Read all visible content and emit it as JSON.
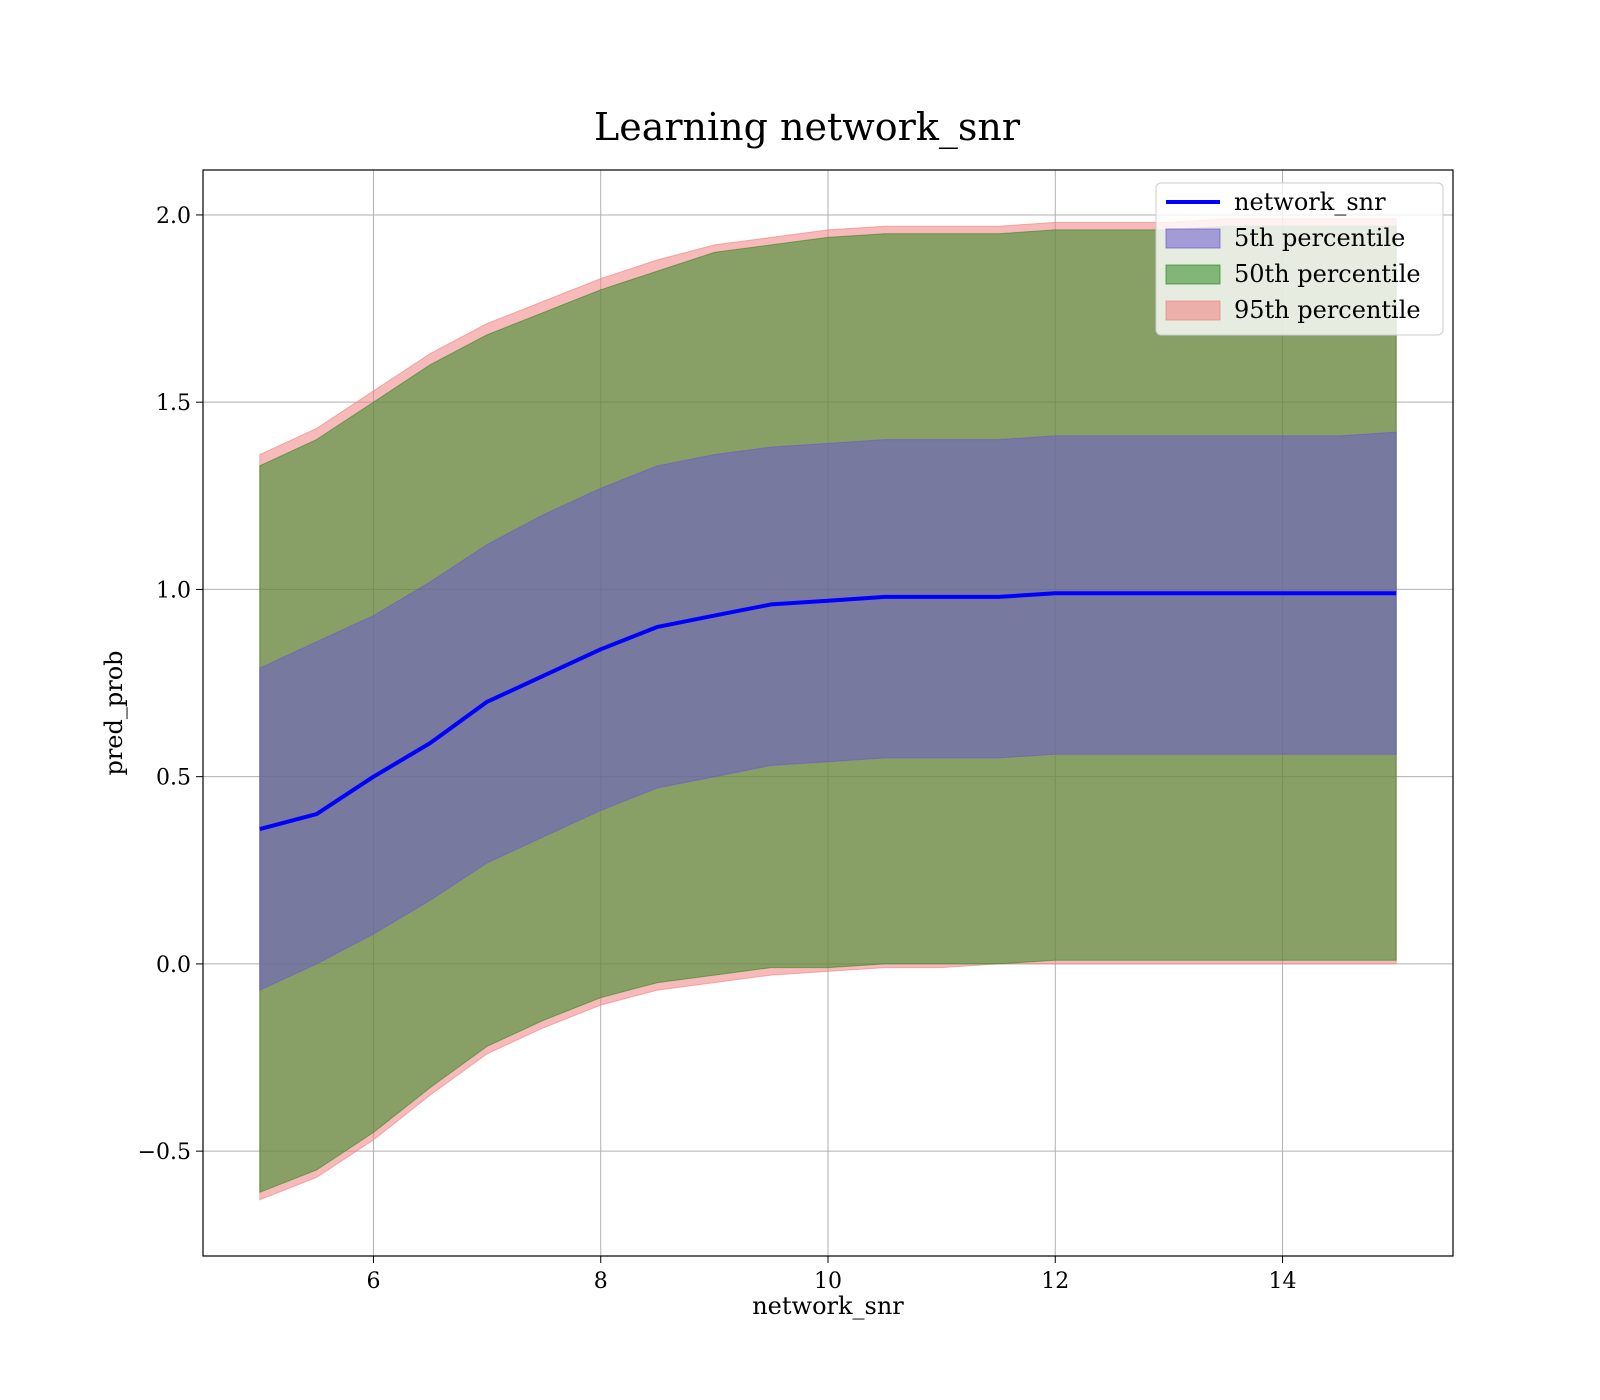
{
  "chart_data": {
    "type": "area",
    "title": "Learning network_snr",
    "xlabel": "network_snr",
    "ylabel": "pred_prob",
    "xlim": [
      4.5,
      15.5
    ],
    "ylim": [
      -0.78,
      2.12
    ],
    "grid": true,
    "legend_position": "top-right",
    "x_ticks": [
      6,
      8,
      10,
      12,
      14
    ],
    "x_tick_labels": [
      "6",
      "8",
      "10",
      "12",
      "14"
    ],
    "y_ticks": [
      -0.5,
      0.0,
      0.5,
      1.0,
      1.5,
      2.0
    ],
    "y_tick_labels": [
      "−0.5",
      "0.0",
      "0.5",
      "1.0",
      "1.5",
      "2.0"
    ],
    "x": [
      5.0,
      5.5,
      6.0,
      6.5,
      7.0,
      7.5,
      8.0,
      8.5,
      9.0,
      9.5,
      10.0,
      10.5,
      11.0,
      11.5,
      12.0,
      12.5,
      13.0,
      13.5,
      14.0,
      14.5,
      15.0
    ],
    "series": [
      {
        "name": "network_snr",
        "kind": "line",
        "color": "#0000ff",
        "values": [
          0.36,
          0.4,
          0.5,
          0.59,
          0.7,
          0.77,
          0.84,
          0.9,
          0.93,
          0.96,
          0.97,
          0.98,
          0.98,
          0.98,
          0.99,
          0.99,
          0.99,
          0.99,
          0.99,
          0.99,
          0.99
        ]
      },
      {
        "name": "5th percentile",
        "kind": "band",
        "color": "#6a5acd",
        "lower": [
          -0.07,
          0.0,
          0.08,
          0.17,
          0.27,
          0.34,
          0.41,
          0.47,
          0.5,
          0.53,
          0.54,
          0.55,
          0.55,
          0.55,
          0.56,
          0.56,
          0.56,
          0.56,
          0.56,
          0.56,
          0.56
        ],
        "upper": [
          0.79,
          0.86,
          0.93,
          1.02,
          1.12,
          1.2,
          1.27,
          1.33,
          1.36,
          1.38,
          1.39,
          1.4,
          1.4,
          1.4,
          1.41,
          1.41,
          1.41,
          1.41,
          1.41,
          1.41,
          1.42
        ]
      },
      {
        "name": "50th percentile",
        "kind": "band",
        "color": "#2e8b22",
        "lower": [
          -0.61,
          -0.55,
          -0.45,
          -0.33,
          -0.22,
          -0.15,
          -0.09,
          -0.05,
          -0.03,
          -0.01,
          -0.01,
          0.0,
          0.0,
          0.0,
          0.01,
          0.01,
          0.01,
          0.01,
          0.01,
          0.01,
          0.01
        ],
        "upper": [
          1.33,
          1.4,
          1.5,
          1.6,
          1.68,
          1.74,
          1.8,
          1.85,
          1.9,
          1.92,
          1.94,
          1.95,
          1.95,
          1.95,
          1.96,
          1.96,
          1.96,
          1.97,
          1.97,
          1.97,
          1.97
        ]
      },
      {
        "name": "95th percentile",
        "kind": "band",
        "color": "#f08080",
        "lower": [
          -0.63,
          -0.57,
          -0.47,
          -0.35,
          -0.24,
          -0.17,
          -0.11,
          -0.07,
          -0.05,
          -0.03,
          -0.02,
          -0.01,
          -0.01,
          0.0,
          0.0,
          0.0,
          0.0,
          0.0,
          0.0,
          0.0,
          0.0
        ],
        "upper": [
          1.36,
          1.43,
          1.53,
          1.63,
          1.71,
          1.77,
          1.83,
          1.88,
          1.92,
          1.94,
          1.96,
          1.97,
          1.97,
          1.97,
          1.98,
          1.98,
          1.98,
          1.99,
          1.99,
          1.99,
          1.99
        ]
      }
    ]
  }
}
